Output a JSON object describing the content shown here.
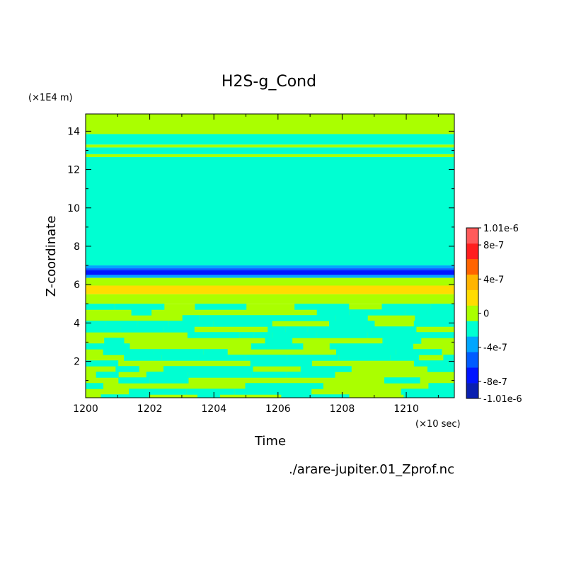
{
  "chart_data": {
    "type": "heatmap",
    "title": "H2S-g_Cond",
    "xlabel": "Time",
    "ylabel": "Z-coordinate",
    "x_unit_label": "(×10 sec)",
    "y_unit_label": "(×1E4 m)",
    "source_file": "./arare-jupiter.01_Zprof.nc",
    "xlim": [
      1200,
      1211.5
    ],
    "ylim": [
      0.1,
      14.9
    ],
    "x_ticks": [
      "1200",
      "1202",
      "1204",
      "1206",
      "1208",
      "1210"
    ],
    "y_ticks": [
      "2",
      "4",
      "6",
      "8",
      "10",
      "12",
      "14"
    ],
    "colorbar": {
      "tick_labels": [
        "1.01e-6",
        "8e-7",
        "4e-7",
        "0",
        "-4e-7",
        "-8e-7",
        "-1.01e-6"
      ],
      "levels": [
        {
          "range": [
            -1.01e-06,
            -8e-07
          ],
          "color": "#0a1fb0"
        },
        {
          "range": [
            -8e-07,
            -6e-07
          ],
          "color": "#0014ff"
        },
        {
          "range": [
            -6e-07,
            -4e-07
          ],
          "color": "#005bff"
        },
        {
          "range": [
            -4e-07,
            -2e-07
          ],
          "color": "#00a6ff"
        },
        {
          "range": [
            -2e-07,
            0
          ],
          "color": "#00ffd2"
        },
        {
          "range": [
            0,
            2e-07
          ],
          "color": "#aaff00"
        },
        {
          "range": [
            2e-07,
            4e-07
          ],
          "color": "#ffdc00"
        },
        {
          "range": [
            4e-07,
            6e-07
          ],
          "color": "#ffb400"
        },
        {
          "range": [
            6e-07,
            8e-07
          ],
          "color": "#ff6400"
        },
        {
          "range": [
            8e-07,
            1.01e-06
          ],
          "color": "#ff1e1e"
        },
        {
          "range": [
            1.01e-06,
            1.2e-06
          ],
          "color": "#ff5a5a"
        }
      ]
    },
    "layers": [
      {
        "z": [
          13.85,
          14.9
        ],
        "value": 1e-07
      },
      {
        "z": [
          13.3,
          13.85
        ],
        "value": -1e-07
      },
      {
        "z": [
          13.15,
          13.3
        ],
        "value": 1e-07
      },
      {
        "z": [
          12.8,
          13.15
        ],
        "value": -1e-07
      },
      {
        "z": [
          12.65,
          12.8
        ],
        "value": 1e-07
      },
      {
        "z": [
          7.0,
          12.65
        ],
        "value": -1e-07
      },
      {
        "z": [
          6.85,
          7.0
        ],
        "value": -3e-07
      },
      {
        "z": [
          6.75,
          6.85
        ],
        "value": -5e-07
      },
      {
        "z": [
          6.5,
          6.75
        ],
        "value": -7e-07
      },
      {
        "z": [
          6.35,
          6.5
        ],
        "value": -3e-07
      },
      {
        "z": [
          5.95,
          6.35
        ],
        "value": 1e-07
      },
      {
        "z": [
          5.5,
          5.95
        ],
        "value": 3e-07
      },
      {
        "z": [
          5.0,
          5.5
        ],
        "value": 1e-07
      }
    ],
    "lower_region": {
      "z": [
        0.1,
        5.0
      ],
      "values": [
        1e-07,
        -1e-07
      ],
      "description_pattern": "patchy mix"
    }
  }
}
